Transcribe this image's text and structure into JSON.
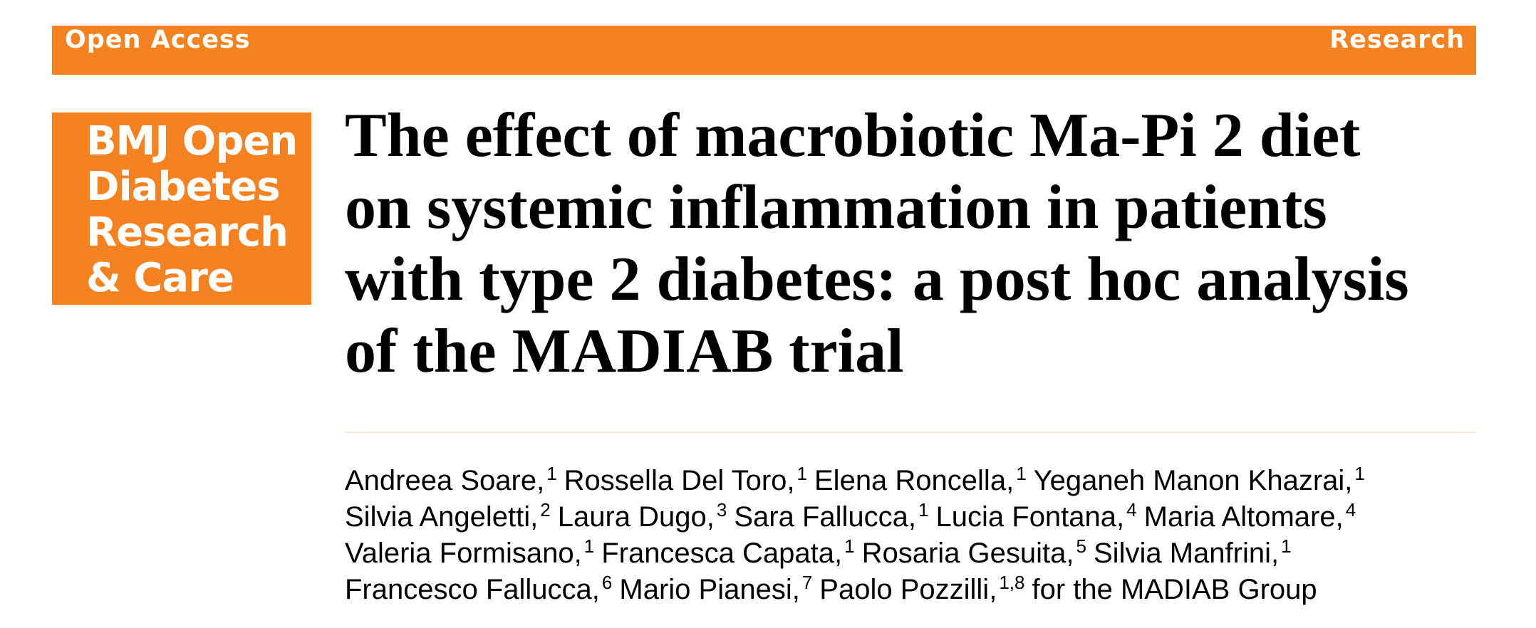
{
  "header": {
    "left": "Open Access",
    "right": "Research"
  },
  "logo": {
    "lines": [
      "BMJ Open",
      "Diabetes",
      "Research",
      "& Care"
    ]
  },
  "title": {
    "lines": [
      "The effect of macrobiotic Ma-Pi 2 diet",
      "on systemic inflammation in patients",
      "with type 2 diabetes: a post hoc analysis",
      "of the MADIAB trial"
    ]
  },
  "authors": {
    "lines": [
      [
        {
          "name": "Andreea Soare,",
          "aff": "1"
        },
        {
          "name": "Rossella Del Toro,",
          "aff": "1"
        },
        {
          "name": "Elena Roncella,",
          "aff": "1"
        },
        {
          "name": "Yeganeh Manon Khazrai,",
          "aff": "1"
        }
      ],
      [
        {
          "name": "Silvia Angeletti,",
          "aff": "2"
        },
        {
          "name": "Laura Dugo,",
          "aff": "3"
        },
        {
          "name": "Sara Fallucca,",
          "aff": "1"
        },
        {
          "name": "Lucia Fontana,",
          "aff": "4"
        },
        {
          "name": "Maria Altomare,",
          "aff": "4"
        }
      ],
      [
        {
          "name": "Valeria Formisano,",
          "aff": "1"
        },
        {
          "name": "Francesca Capata,",
          "aff": "1"
        },
        {
          "name": "Rosaria Gesuita,",
          "aff": "5"
        },
        {
          "name": "Silvia Manfrini,",
          "aff": "1"
        }
      ],
      [
        {
          "name": "Francesco Fallucca,",
          "aff": "6"
        },
        {
          "name": "Mario Pianesi,",
          "aff": "7"
        },
        {
          "name": "Paolo Pozzilli,",
          "aff": "1,8"
        }
      ]
    ],
    "group": "for the MADIAB Group"
  }
}
